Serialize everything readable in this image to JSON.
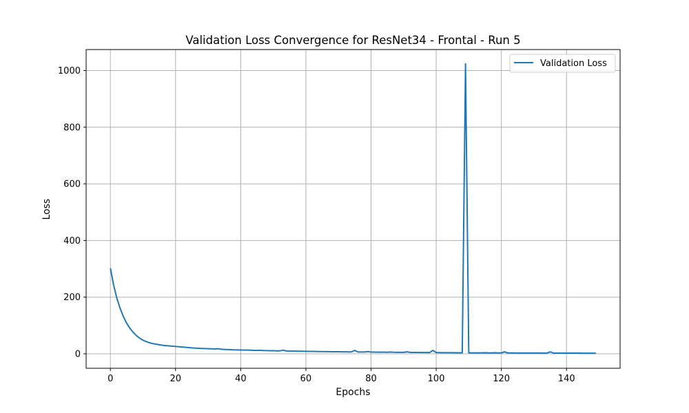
{
  "chart_data": {
    "type": "line",
    "title": "Validation Loss Convergence for ResNet34 - Frontal - Run 5",
    "xlabel": "Epochs",
    "ylabel": "Loss",
    "xlim": [
      -7.45,
      156.45
    ],
    "ylim": [
      -51,
      1074
    ],
    "xticks": [
      0,
      20,
      40,
      60,
      80,
      100,
      120,
      140
    ],
    "yticks": [
      0,
      200,
      400,
      600,
      800,
      1000
    ],
    "grid": true,
    "legend_position": "top-right",
    "line_color": "#1f77b4",
    "series": [
      {
        "name": "Validation Loss",
        "x": [
          0,
          1,
          2,
          3,
          4,
          5,
          6,
          7,
          8,
          9,
          10,
          11,
          12,
          13,
          14,
          15,
          16,
          17,
          18,
          19,
          20,
          21,
          22,
          23,
          24,
          25,
          26,
          27,
          28,
          29,
          30,
          31,
          32,
          33,
          34,
          35,
          36,
          37,
          38,
          39,
          40,
          41,
          42,
          43,
          44,
          45,
          46,
          47,
          48,
          49,
          50,
          51,
          52,
          53,
          54,
          55,
          56,
          57,
          58,
          59,
          60,
          61,
          62,
          63,
          64,
          65,
          66,
          67,
          68,
          69,
          70,
          71,
          72,
          73,
          74,
          75,
          76,
          77,
          78,
          79,
          80,
          81,
          82,
          83,
          84,
          85,
          86,
          87,
          88,
          89,
          90,
          91,
          92,
          93,
          94,
          95,
          96,
          97,
          98,
          99,
          100,
          101,
          102,
          103,
          104,
          105,
          106,
          107,
          108,
          109,
          110,
          111,
          112,
          113,
          114,
          115,
          116,
          117,
          118,
          119,
          120,
          121,
          122,
          123,
          124,
          125,
          126,
          127,
          128,
          129,
          130,
          131,
          132,
          133,
          134,
          135,
          136,
          137,
          138,
          139,
          140,
          141,
          142,
          143,
          144,
          145,
          146,
          147,
          148,
          149
        ],
        "values": [
          302,
          242,
          196,
          160,
          131,
          108,
          90,
          76,
          64,
          55,
          48,
          43,
          39,
          36,
          34,
          32,
          30,
          29,
          28,
          27,
          26,
          25,
          24,
          23,
          22,
          21,
          20,
          19.5,
          19,
          18.5,
          18,
          17.5,
          17,
          18,
          16,
          15.5,
          15,
          14.5,
          14,
          13.8,
          13.5,
          13.2,
          13,
          12.7,
          12.3,
          12,
          12.5,
          11.5,
          11.3,
          11,
          11.2,
          10.5,
          10.2,
          13,
          10,
          9.8,
          9.5,
          9.3,
          9.1,
          9,
          8.8,
          8.6,
          8.4,
          8.2,
          8,
          7.9,
          7.7,
          7.5,
          7.4,
          7.3,
          7.2,
          7,
          6.9,
          6.8,
          6.7,
          12,
          6.5,
          6.4,
          6.3,
          8,
          6.1,
          6,
          5.9,
          5.8,
          5.7,
          5.6,
          6.5,
          5.4,
          5.3,
          5.2,
          5.1,
          7,
          5,
          4.9,
          4.8,
          4.7,
          4.6,
          4.5,
          4.4,
          12,
          4.3,
          4.2,
          4.1,
          4,
          4,
          3.9,
          3.8,
          3.8,
          3.7,
          1024,
          3.6,
          3.5,
          3.5,
          3.4,
          3.4,
          4,
          3.3,
          3.2,
          4,
          3.2,
          3.1,
          7,
          3,
          3,
          3,
          2.9,
          2.9,
          2.8,
          2.8,
          2.8,
          2.7,
          2.7,
          2.7,
          2.6,
          2.6,
          7,
          2.5,
          2.5,
          2.5,
          2.4,
          2.4,
          2.4,
          2.3,
          2.3,
          2.3,
          2.2,
          2.2,
          2.2,
          2.1,
          2.1
        ]
      }
    ]
  }
}
